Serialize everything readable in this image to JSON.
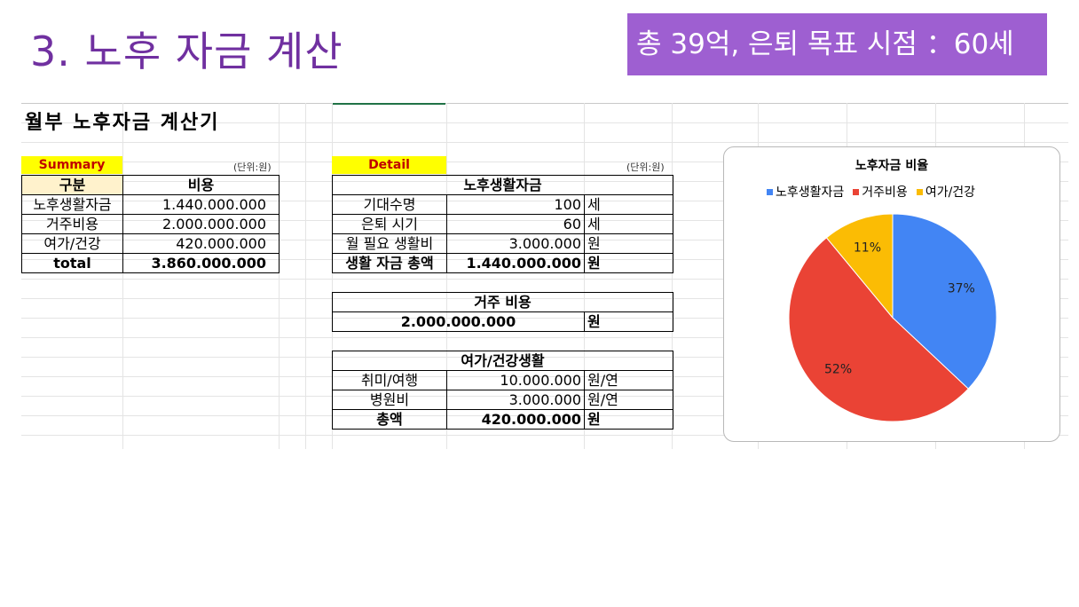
{
  "slide": {
    "title": "3. 노후 자금 계산",
    "banner": "총 39억, 은퇴 목표 시점 ：60세"
  },
  "sheet": {
    "title": "월부 노후자금 계산기",
    "summary": {
      "tag": "Summary",
      "unit": "(단위:원)",
      "headers": [
        "구분",
        "비용"
      ],
      "rows": [
        {
          "label": "노후생활자금",
          "value": "1.440.000.000"
        },
        {
          "label": "거주비용",
          "value": "2.000.000.000"
        },
        {
          "label": "여가/건강",
          "value": "420.000.000"
        }
      ],
      "total": {
        "label": "total",
        "value": "3.860.000.000"
      }
    },
    "detail": {
      "tag": "Detail",
      "unit": "(단위:원)",
      "living": {
        "header": "노후생활자금",
        "rows": [
          {
            "label": "기대수명",
            "value": "100",
            "unit": "세"
          },
          {
            "label": "은퇴 시기",
            "value": "60",
            "unit": "세"
          },
          {
            "label": "월 필요 생활비",
            "value": "3.000.000",
            "unit": "원"
          }
        ],
        "total": {
          "label": "생활 자금 총액",
          "value": "1.440.000.000",
          "unit": "원"
        }
      },
      "housing": {
        "header": "거주 비용",
        "value": "2.000.000.000",
        "unit": "원"
      },
      "leisure": {
        "header": "여가/건강생활",
        "rows": [
          {
            "label": "취미/여행",
            "value": "10.000.000",
            "unit": "원/연"
          },
          {
            "label": "병원비",
            "value": "3.000.000",
            "unit": "원/연"
          }
        ],
        "total": {
          "label": "총액",
          "value": "420.000.000",
          "unit": "원"
        }
      }
    }
  },
  "chart_data": {
    "type": "pie",
    "title": "노후자금 비율",
    "categories": [
      "노후생활자금",
      "거주비용",
      "여가/건강"
    ],
    "values": [
      37,
      52,
      11
    ],
    "labels": [
      "37%",
      "52%",
      "11%"
    ],
    "colors": [
      "#4285f4",
      "#ea4335",
      "#fbbc04"
    ],
    "legend": "top",
    "start_angle": "12 o'clock, clockwise"
  }
}
